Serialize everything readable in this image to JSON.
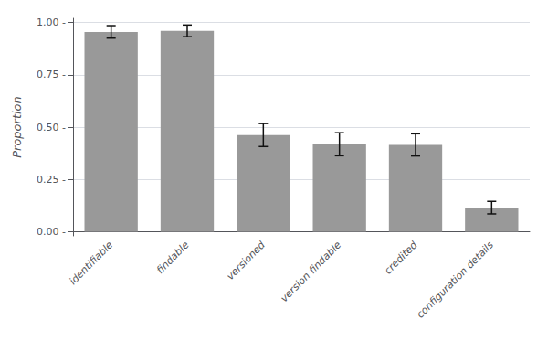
{
  "chart_data": {
    "type": "bar",
    "categories": [
      "identifiable",
      "findable",
      "versioned",
      "version findable",
      "credited",
      "configuration details"
    ],
    "values": [
      0.955,
      0.96,
      0.462,
      0.418,
      0.415,
      0.115
    ],
    "errors": [
      0.03,
      0.028,
      0.055,
      0.055,
      0.053,
      0.03
    ],
    "color": "#999999",
    "ylabel": "Proportion",
    "ylim": [
      -0.02,
      1.02
    ],
    "yticks": [
      {
        "value": 0.0,
        "label": "0.00 -"
      },
      {
        "value": 0.25,
        "label": "0.25 -"
      },
      {
        "value": 0.5,
        "label": "0.50 -"
      },
      {
        "value": 0.75,
        "label": "0.75 -"
      },
      {
        "value": 1.0,
        "label": "1.00 -"
      }
    ],
    "grid": true
  }
}
